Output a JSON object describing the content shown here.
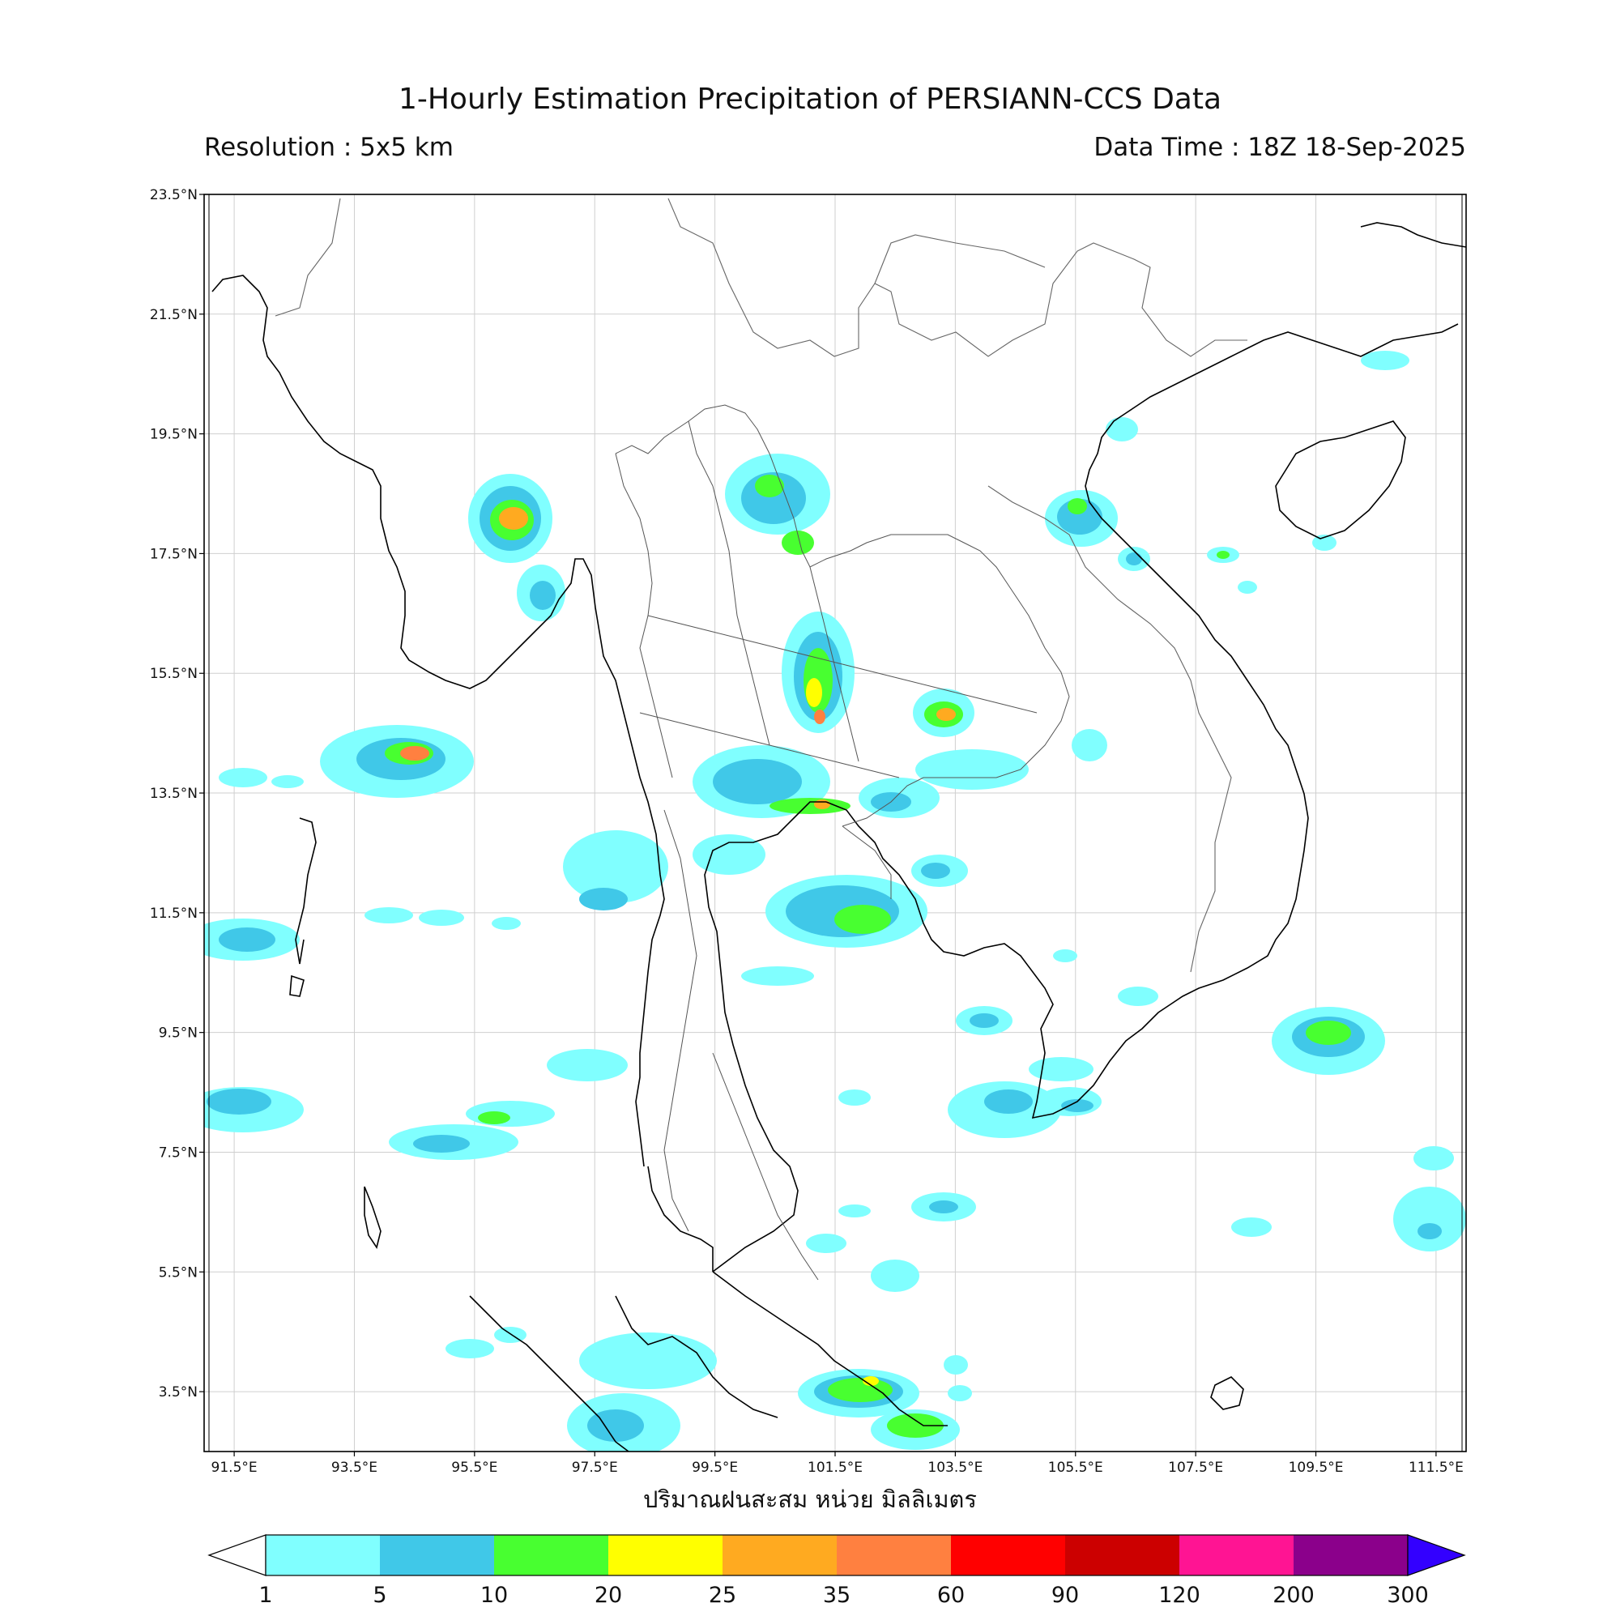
{
  "header": {
    "title": "1-Hourly Estimation Precipitation of PERSIANN-CCS Data",
    "resolution": "Resolution : 5x5 km",
    "data_time": "Data Time : 18Z 18-Sep-2025"
  },
  "map": {
    "lon_range": [
      91.0,
      112.0
    ],
    "lat_range": [
      2.5,
      23.5
    ],
    "lon_ticks": [
      "91.5°E",
      "93.5°E",
      "95.5°E",
      "97.5°E",
      "99.5°E",
      "101.5°E",
      "103.5°E",
      "105.5°E",
      "107.5°E",
      "109.5°E",
      "111.5°E"
    ],
    "lat_ticks": [
      "23.5°N",
      "21.5°N",
      "19.5°N",
      "17.5°N",
      "15.5°N",
      "13.5°N",
      "11.5°N",
      "9.5°N",
      "7.5°N",
      "5.5°N",
      "3.5°N"
    ],
    "grid": true
  },
  "colorbar": {
    "label": "ปริมาณฝนสะสม หน่วย มิลลิเมตร",
    "levels": [
      "1",
      "5",
      "10",
      "20",
      "25",
      "35",
      "60",
      "90",
      "120",
      "200",
      "300"
    ],
    "colors": [
      "#80ffff",
      "#40c8e8",
      "#48ff30",
      "#ffff00",
      "#ffaa20",
      "#ff8040",
      "#ff0000",
      "#cc0000",
      "#ff1493",
      "#8b008b"
    ],
    "extend_color": "#3300ff"
  }
}
